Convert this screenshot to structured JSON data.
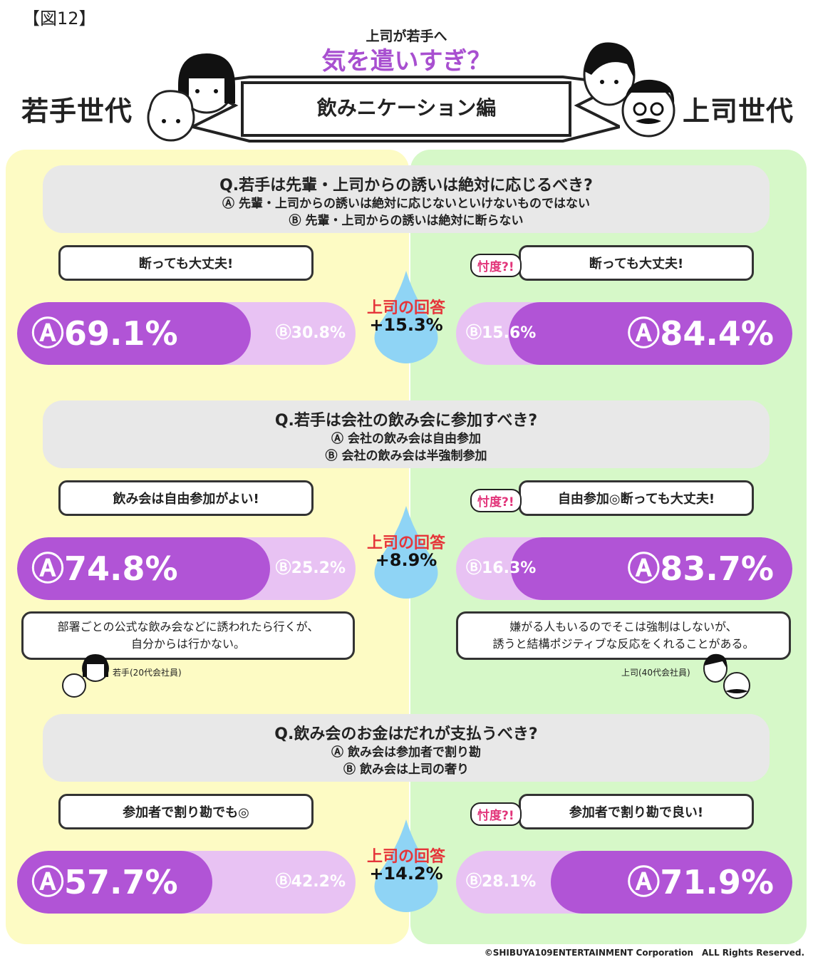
{
  "figure_label": "【図12】",
  "header": {
    "subtitle_small": "上司が若手へ",
    "title_big": "気を遣いすぎ？",
    "ribbon_text": "飲みニケーション編",
    "left_gen": "若手世代",
    "right_gen": "上司世代"
  },
  "colors": {
    "main": "#b154d6",
    "light": "#e8c2f3",
    "left_bg": "#fdfbc4",
    "right_bg": "#d6f8c8",
    "drop": "#8fd4f5",
    "red": "#e5353a"
  },
  "sontaku_label": "忖度?!",
  "drop_label": "上司の回答",
  "chart_data": [
    {
      "type": "bar",
      "question": "Q.若手は先輩・上司からの誘いは絶対に応じるべき?",
      "options": [
        "Ⓐ 先輩・上司からの誘いは絶対に応じないといけないものではない",
        "Ⓑ 先輩・上司からの誘いは絶対に断らない"
      ],
      "young": {
        "bubble": "断っても大丈夫!",
        "A": 69.1,
        "B": 30.8,
        "A_text": "Ⓐ69.1%",
        "B_text": "Ⓑ30.8%"
      },
      "boss": {
        "bubble": "断っても大丈夫!",
        "A": 84.4,
        "B": 15.6,
        "A_text": "Ⓐ84.4%",
        "B_text": "Ⓑ15.6%"
      },
      "diff": "+15.3%"
    },
    {
      "type": "bar",
      "question": "Q.若手は会社の飲み会に参加すべき?",
      "options": [
        "Ⓐ 会社の飲み会は自由参加",
        "Ⓑ 会社の飲み会は半強制参加"
      ],
      "young": {
        "bubble": "飲み会は自由参加がよい!",
        "A": 74.8,
        "B": 25.2,
        "A_text": "Ⓐ74.8%",
        "B_text": "Ⓑ25.2%"
      },
      "boss": {
        "bubble": "自由参加◎断っても大丈夫!",
        "A": 83.7,
        "B": 16.3,
        "A_text": "Ⓐ83.7%",
        "B_text": "Ⓑ16.3%"
      },
      "diff": "+8.9%"
    },
    {
      "type": "bar",
      "question": "Q.飲み会のお金はだれが支払うべき?",
      "options": [
        "Ⓐ 飲み会は参加者で割り勘",
        "Ⓑ 飲み会は上司の奢り"
      ],
      "young": {
        "bubble": "参加者で割り勘でも◎",
        "A": 57.7,
        "B": 42.2,
        "A_text": "Ⓐ57.7%",
        "B_text": "Ⓑ42.2%"
      },
      "boss": {
        "bubble": "参加者で割り勘で良い!",
        "A": 71.9,
        "B": 28.1,
        "A_text": "Ⓐ71.9%",
        "B_text": "Ⓑ28.1%"
      },
      "diff": "+14.2%"
    }
  ],
  "comments": {
    "young": {
      "line1": "部署ごとの公式な飲み会などに誘われたら行くが、",
      "line2": "自分からは行かない。",
      "who": "若手(20代会社員)"
    },
    "boss": {
      "line1": "嫌がる人もいるのでそこは強制はしないが、",
      "line2": "誘うと結構ポジティブな反応をくれることがある。",
      "who": "上司(40代会社員)"
    }
  },
  "copyright": "©SHIBUYA109ENTERTAINMENT Corporation　ALL Rights Reserved."
}
